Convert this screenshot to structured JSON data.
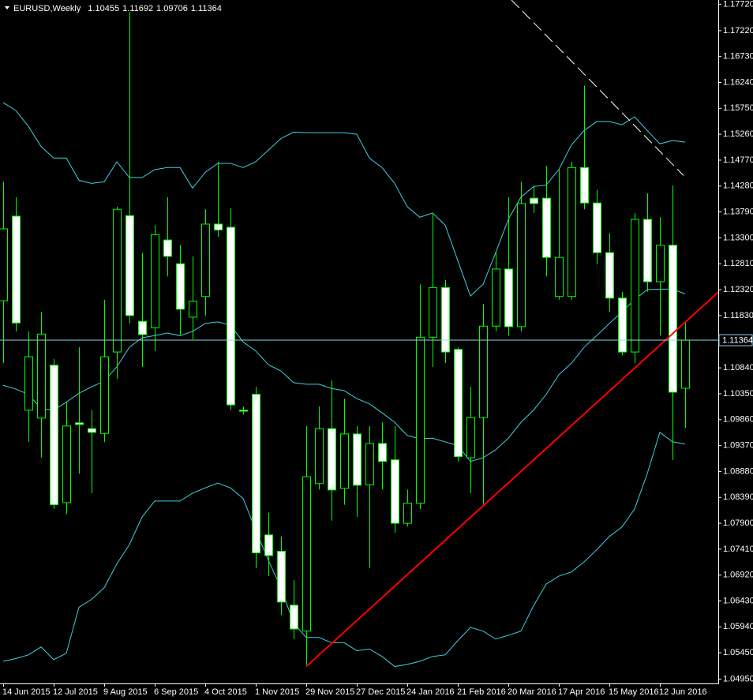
{
  "chart_data": {
    "type": "candlestick",
    "title": "EURUSD,Weekly",
    "categories": [
      "14 Jun 2015",
      null,
      null,
      null,
      "12 Jul 2015",
      null,
      null,
      null,
      "9 Aug 2015",
      null,
      null,
      null,
      "6 Sep 2015",
      null,
      null,
      null,
      "4 Oct 2015",
      null,
      null,
      null,
      "1 Nov 2015",
      null,
      null,
      null,
      "29 Nov 2015",
      null,
      null,
      null,
      "27 Dec 2015",
      null,
      null,
      null,
      "24 Jan 2016",
      null,
      null,
      null,
      "21 Feb 2016",
      null,
      null,
      null,
      "20 Mar 2016",
      null,
      null,
      null,
      "17 Apr 2016",
      null,
      null,
      null,
      "15 May 2016",
      null,
      null,
      null,
      "12 Jun 2016",
      null,
      null
    ],
    "open": [
      1.1211,
      1.1371,
      1.1004,
      1.0989,
      1.1089,
      1.0829,
      1.098,
      1.0969,
      1.096,
      1.1114,
      1.1372,
      1.1172,
      1.116,
      1.1326,
      1.1281,
      1.118,
      1.1219,
      1.1356,
      1.135,
      1.1004,
      1.1034,
      1.0768,
      1.0737,
      1.0635,
      1.0586,
      1.0865,
      1.0969,
      1.0856,
      1.0959,
      1.0863,
      1.0941,
      1.091,
      1.079,
      1.0828,
      1.1142,
      1.1236,
      1.1119,
      1.0914,
      1.099,
      1.1163,
      1.1271,
      1.1162,
      1.1405,
      1.1405,
      1.1219,
      1.1219,
      1.1463,
      1.1396,
      1.1302,
      1.1216,
      1.1114,
      1.1365,
      1.1247,
      1.1316,
      1.10455
    ],
    "high": [
      1.1436,
      1.1407,
      1.1153,
      1.119,
      1.1101,
      1.1019,
      1.1123,
      1.1004,
      1.1213,
      1.1389,
      1.1757,
      1.1302,
      1.1354,
      1.1407,
      1.1317,
      1.1295,
      1.1384,
      1.1474,
      1.1386,
      1.1011,
      1.1048,
      1.081,
      1.0765,
      1.0683,
      1.0974,
      1.1011,
      1.106,
      1.1026,
      1.0974,
      1.0974,
      1.0981,
      1.0974,
      1.0854,
      1.1242,
      1.1377,
      1.125,
      1.1123,
      1.1048,
      1.1205,
      1.1302,
      1.1407,
      1.1436,
      1.1429,
      1.1466,
      1.1459,
      1.1474,
      1.1618,
      1.1421,
      1.1339,
      1.1228,
      1.1377,
      1.1414,
      1.1369,
      1.1429,
      1.11692
    ],
    "low": [
      1.1093,
      1.1153,
      1.0944,
      1.0914,
      1.0817,
      1.0807,
      1.0884,
      1.0847,
      1.0944,
      1.1063,
      1.1168,
      1.1086,
      1.1116,
      1.1257,
      1.1145,
      1.1138,
      1.1183,
      1.1332,
      1.1004,
      1.0996,
      1.0705,
      1.069,
      1.0616,
      1.0571,
      1.0522,
      1.0854,
      1.0795,
      1.0825,
      1.0802,
      1.0705,
      1.0854,
      1.0772,
      1.0784,
      1.0817,
      1.1086,
      1.1093,
      1.0907,
      1.0847,
      1.0825,
      1.1153,
      1.1145,
      1.1153,
      1.1377,
      1.1257,
      1.1213,
      1.1213,
      1.1384,
      1.128,
      1.119,
      1.1108,
      1.1093,
      1.1228,
      1.1145,
      1.091,
      1.09706
    ],
    "close": [
      1.1347,
      1.1169,
      1.1105,
      1.1148,
      1.0825,
      1.0974,
      1.0977,
      1.0962,
      1.1105,
      1.1384,
      1.1183,
      1.1147,
      1.1336,
      1.1295,
      1.1195,
      1.121,
      1.1356,
      1.1345,
      1.1014,
      1.1002,
      1.0734,
      1.0729,
      1.0641,
      1.059,
      1.0878,
      1.0969,
      1.0853,
      1.0959,
      1.0862,
      1.0941,
      1.0907,
      1.079,
      1.0828,
      1.1142,
      1.1236,
      1.1114,
      1.0916,
      1.099,
      1.1163,
      1.1271,
      1.1162,
      1.1395,
      1.1395,
      1.1293,
      1.1293,
      1.1463,
      1.1396,
      1.1302,
      1.1216,
      1.1114,
      1.1365,
      1.1247,
      1.1316,
      1.1038,
      1.11364
    ],
    "color": "#00ff00",
    "up_fill": "#000000",
    "down_fill": "#ffffff",
    "overlays": [
      {
        "color": "#3fd0e0",
        "values": [
          1.1586,
          1.1571,
          1.1541,
          1.1503,
          1.1481,
          1.1481,
          1.1439,
          1.1433,
          1.1436,
          1.1474,
          1.1444,
          1.1444,
          1.1459,
          1.1463,
          1.1463,
          1.1424,
          1.1454,
          1.1471,
          1.1471,
          1.1463,
          1.1474,
          1.1496,
          1.1518,
          1.153,
          1.1529,
          1.1529,
          1.1529,
          1.1529,
          1.1526,
          1.1481,
          1.1463,
          1.1433,
          1.1389,
          1.1369,
          1.1377,
          1.1354,
          1.1287,
          1.122,
          1.1242,
          1.1302,
          1.1365,
          1.1407,
          1.1427,
          1.143,
          1.1459,
          1.1506,
          1.1533,
          1.155,
          1.155,
          1.1544,
          1.1559,
          1.1533,
          1.1508,
          1.1514,
          1.1511
        ]
      },
      {
        "color": "#3fd0e0",
        "values": [
          1.1051,
          1.1044,
          1.1034,
          1.1007,
          1.1004,
          1.1019,
          1.1036,
          1.1048,
          1.1059,
          1.1086,
          1.1123,
          1.1141,
          1.1145,
          1.115,
          1.1145,
          1.1153,
          1.1168,
          1.1171,
          1.1165,
          1.1133,
          1.1116,
          1.109,
          1.1078,
          1.1056,
          1.1053,
          1.1053,
          1.1045,
          1.1041,
          1.1026,
          1.1016,
          1.0999,
          1.0981,
          1.0956,
          1.095,
          1.0951,
          1.0944,
          1.0937,
          1.0907,
          1.0914,
          1.0929,
          1.0951,
          1.0981,
          1.1004,
          1.1034,
          1.1071,
          1.1093,
          1.1123,
          1.1145,
          1.1168,
          1.119,
          1.1213,
          1.1232,
          1.1233,
          1.1233,
          1.1224
        ]
      },
      {
        "color": "#3fd0e0",
        "values": [
          1.0529,
          1.0534,
          1.0541,
          1.0556,
          1.0532,
          1.0544,
          1.0631,
          1.0646,
          1.0668,
          1.0713,
          1.075,
          1.0802,
          1.0832,
          1.0832,
          1.0832,
          1.0847,
          1.0857,
          1.0866,
          1.0857,
          1.0837,
          1.0777,
          1.072,
          1.0668,
          1.0601,
          1.0574,
          1.0574,
          1.0564,
          1.0564,
          1.0549,
          1.0552,
          1.0538,
          1.0519,
          1.0523,
          1.0529,
          1.0538,
          1.0541,
          1.0568,
          1.0593,
          1.0586,
          1.0571,
          1.0578,
          1.0586,
          1.0634,
          1.0675,
          1.069,
          1.0698,
          1.0717,
          1.074,
          1.0765,
          1.0783,
          1.0817,
          1.0884,
          1.0962,
          1.0944,
          1.094
        ]
      }
    ],
    "trendlines": [
      {
        "color": "#ff0000",
        "style": "solid",
        "x": [
          24,
          56.75
        ],
        "y": [
          1.0519,
          1.123
        ]
      },
      {
        "color": "#ffffff",
        "style": "dashed",
        "x": [
          40.25,
          53.875
        ],
        "y": [
          1.178,
          1.1448
        ]
      }
    ],
    "price_line_color": "#8fd8e8",
    "ylim": [
      1.0487,
      1.178
    ],
    "yticks": [
      {
        "value": 1.1772,
        "label": "1.17720"
      },
      {
        "value": 1.1722,
        "label": "1.17220"
      },
      {
        "value": 1.1673,
        "label": "1.16730"
      },
      {
        "value": 1.1624,
        "label": "1.16240"
      },
      {
        "value": 1.1575,
        "label": "1.15750"
      },
      {
        "value": 1.1526,
        "label": "1.15260"
      },
      {
        "value": 1.1477,
        "label": "1.14770"
      },
      {
        "value": 1.1428,
        "label": "1.14280"
      },
      {
        "value": 1.1379,
        "label": "1.13790"
      },
      {
        "value": 1.133,
        "label": "1.13300"
      },
      {
        "value": 1.1281,
        "label": "1.12810"
      },
      {
        "value": 1.1232,
        "label": "1.12320"
      },
      {
        "value": 1.1183,
        "label": "1.11830"
      },
      {
        "value": 1.1084,
        "label": "1.10840"
      },
      {
        "value": 1.1035,
        "label": "1.10350"
      },
      {
        "value": 1.0986,
        "label": "1.09860"
      },
      {
        "value": 1.0937,
        "label": "1.09370"
      },
      {
        "value": 1.0888,
        "label": "1.08880"
      },
      {
        "value": 1.0839,
        "label": "1.08390"
      },
      {
        "value": 1.079,
        "label": "1.07900"
      },
      {
        "value": 1.0741,
        "label": "1.07410"
      },
      {
        "value": 1.0692,
        "label": "1.06920"
      },
      {
        "value": 1.0643,
        "label": "1.06430"
      },
      {
        "value": 1.0594,
        "label": "1.05940"
      },
      {
        "value": 1.0545,
        "label": "1.05450"
      },
      {
        "value": 1.0495,
        "label": "1.04950"
      }
    ],
    "grid": false
  }
}
